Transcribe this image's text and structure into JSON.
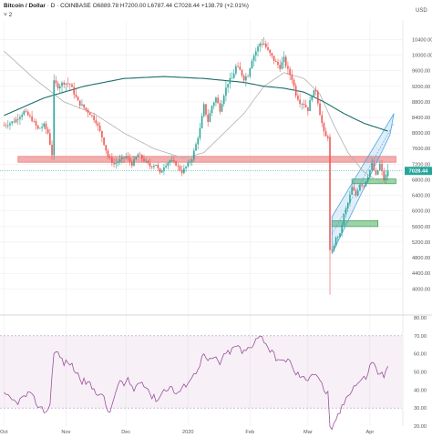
{
  "header": {
    "symbol": "Bitcoin / Dollar",
    "interval": "D",
    "exchange": "COINBASE",
    "ohlc": "O6889.78 H7200.00 L6787.44 C7028.44 +138.79 (+2.01%)",
    "indicator_badge": "˅ 2",
    "currency": "USD"
  },
  "price_label": "7028.44",
  "colors": {
    "up": "#26a69a",
    "down": "#ef5350",
    "ma200": "#1b6e6b",
    "ma50": "#b0b0b0",
    "rsi": "#9b4f9b",
    "channel": "#4da3e0",
    "resistance": "#e57373",
    "support": "#66bb6a"
  },
  "chart_data": [
    {
      "type": "candlestick",
      "title": "Bitcoin / Dollar",
      "x_ticks": [
        {
          "label": "Oct",
          "day": 0
        },
        {
          "label": "Nov",
          "day": 31
        },
        {
          "label": "Dec",
          "day": 61
        },
        {
          "label": "2020",
          "day": 92
        },
        {
          "label": "Feb",
          "day": 123
        },
        {
          "label": "Mar",
          "day": 152
        },
        {
          "label": "Apr",
          "day": 183
        }
      ],
      "ylim": [
        3400,
        10900
      ],
      "y_ticks": [
        4000,
        4400,
        4800,
        5200,
        5600,
        6000,
        6400,
        6800,
        7200,
        7600,
        8000,
        8400,
        8800,
        9200,
        9600,
        10000,
        10400
      ],
      "x_day_range": [
        -2,
        199
      ],
      "anchors": [
        [
          0,
          8200
        ],
        [
          5,
          8300
        ],
        [
          10,
          8550
        ],
        [
          14,
          8350
        ],
        [
          17,
          8100
        ],
        [
          20,
          8200
        ],
        [
          22,
          8000
        ],
        [
          24,
          7450
        ],
        [
          25,
          9300
        ],
        [
          27,
          9200
        ],
        [
          30,
          9300
        ],
        [
          33,
          9250
        ],
        [
          37,
          8800
        ],
        [
          40,
          8650
        ],
        [
          43,
          8500
        ],
        [
          46,
          8300
        ],
        [
          49,
          7900
        ],
        [
          52,
          7400
        ],
        [
          55,
          7200
        ],
        [
          58,
          7300
        ],
        [
          61,
          7400
        ],
        [
          64,
          7200
        ],
        [
          67,
          7450
        ],
        [
          70,
          7300
        ],
        [
          73,
          7150
        ],
        [
          76,
          7200
        ],
        [
          78,
          6950
        ],
        [
          80,
          7150
        ],
        [
          83,
          7300
        ],
        [
          86,
          7200
        ],
        [
          89,
          7000
        ],
        [
          92,
          7200
        ],
        [
          94,
          7350
        ],
        [
          96,
          7700
        ],
        [
          98,
          8100
        ],
        [
          100,
          8700
        ],
        [
          102,
          8300
        ],
        [
          104,
          8700
        ],
        [
          106,
          8900
        ],
        [
          108,
          8600
        ],
        [
          110,
          9000
        ],
        [
          112,
          9300
        ],
        [
          114,
          9400
        ],
        [
          116,
          9700
        ],
        [
          118,
          9600
        ],
        [
          120,
          9400
        ],
        [
          122,
          9500
        ],
        [
          124,
          9900
        ],
        [
          126,
          10100
        ],
        [
          128,
          10300
        ],
        [
          130,
          10300
        ],
        [
          132,
          10100
        ],
        [
          134,
          9950
        ],
        [
          136,
          9800
        ],
        [
          138,
          9700
        ],
        [
          140,
          9900
        ],
        [
          142,
          9600
        ],
        [
          144,
          9400
        ],
        [
          146,
          9000
        ],
        [
          148,
          8800
        ],
        [
          150,
          8750
        ],
        [
          152,
          8600
        ],
        [
          154,
          9000
        ],
        [
          156,
          9100
        ],
        [
          158,
          8500
        ],
        [
          160,
          8000
        ],
        [
          161,
          7900
        ],
        [
          162,
          7900
        ],
        [
          163,
          5000
        ],
        [
          164,
          4950
        ],
        [
          166,
          5300
        ],
        [
          168,
          5400
        ],
        [
          170,
          5900
        ],
        [
          172,
          6200
        ],
        [
          174,
          6600
        ],
        [
          176,
          6400
        ],
        [
          178,
          6700
        ],
        [
          180,
          6650
        ],
        [
          182,
          6900
        ],
        [
          184,
          7200
        ],
        [
          186,
          6900
        ],
        [
          188,
          7200
        ],
        [
          190,
          6800
        ],
        [
          192,
          7028
        ]
      ],
      "ma200_anchors": [
        [
          0,
          8450
        ],
        [
          20,
          8900
        ],
        [
          40,
          9200
        ],
        [
          60,
          9400
        ],
        [
          80,
          9450
        ],
        [
          100,
          9400
        ],
        [
          120,
          9300
        ],
        [
          130,
          9200
        ],
        [
          140,
          9150
        ],
        [
          150,
          9050
        ],
        [
          160,
          8800
        ],
        [
          170,
          8500
        ],
        [
          180,
          8250
        ],
        [
          192,
          8050
        ]
      ],
      "ma50_anchors": [
        [
          0,
          10100
        ],
        [
          15,
          9400
        ],
        [
          30,
          8800
        ],
        [
          45,
          8500
        ],
        [
          60,
          8000
        ],
        [
          75,
          7600
        ],
        [
          90,
          7350
        ],
        [
          100,
          7500
        ],
        [
          110,
          8000
        ],
        [
          120,
          8500
        ],
        [
          130,
          9200
        ],
        [
          140,
          9550
        ],
        [
          150,
          9400
        ],
        [
          158,
          9000
        ],
        [
          165,
          8200
        ],
        [
          172,
          7500
        ],
        [
          180,
          7000
        ],
        [
          186,
          6800
        ],
        [
          190,
          6700
        ]
      ],
      "channel": {
        "base_start": [
          164,
          4900
        ],
        "base_end": [
          193,
          7950
        ],
        "top_start": [
          164,
          5850
        ],
        "top_end": [
          195,
          8500
        ],
        "mid_start": [
          164,
          5400
        ],
        "mid_end": [
          195,
          8250
        ]
      },
      "resistance_zone": {
        "day_from": 7,
        "day_to": 196,
        "price_from": 7250,
        "price_to": 7400
      },
      "support_zones": [
        {
          "day_from": 164,
          "day_to": 187,
          "price_from": 5600,
          "price_to": 5750
        },
        {
          "day_from": 174,
          "day_to": 196,
          "price_from": 6700,
          "price_to": 6820
        }
      ],
      "current_price_line": 7028.44
    },
    {
      "type": "line",
      "title": "",
      "series": [
        {
          "name": "",
          "anchors": [
            [
              0,
              37
            ],
            [
              3,
              35
            ],
            [
              6,
              33
            ],
            [
              9,
              35
            ],
            [
              12,
              38
            ],
            [
              15,
              35
            ],
            [
              18,
              30
            ],
            [
              21,
              28
            ],
            [
              23,
              32
            ],
            [
              25,
              62
            ],
            [
              27,
              60
            ],
            [
              30,
              55
            ],
            [
              33,
              55
            ],
            [
              36,
              50
            ],
            [
              39,
              45
            ],
            [
              42,
              44
            ],
            [
              45,
              40
            ],
            [
              48,
              38
            ],
            [
              50,
              35
            ],
            [
              52,
              28
            ],
            [
              54,
              30
            ],
            [
              56,
              40
            ],
            [
              58,
              45
            ],
            [
              60,
              42
            ],
            [
              62,
              45
            ],
            [
              65,
              40
            ],
            [
              68,
              45
            ],
            [
              71,
              43
            ],
            [
              74,
              36
            ],
            [
              77,
              35
            ],
            [
              80,
              40
            ],
            [
              83,
              42
            ],
            [
              86,
              38
            ],
            [
              89,
              40
            ],
            [
              92,
              45
            ],
            [
              95,
              48
            ],
            [
              98,
              55
            ],
            [
              100,
              60
            ],
            [
              102,
              55
            ],
            [
              105,
              58
            ],
            [
              108,
              55
            ],
            [
              111,
              60
            ],
            [
              114,
              62
            ],
            [
              117,
              65
            ],
            [
              119,
              60
            ],
            [
              121,
              62
            ],
            [
              124,
              65
            ],
            [
              127,
              70
            ],
            [
              130,
              68
            ],
            [
              133,
              62
            ],
            [
              136,
              58
            ],
            [
              139,
              55
            ],
            [
              142,
              58
            ],
            [
              145,
              50
            ],
            [
              148,
              48
            ],
            [
              151,
              45
            ],
            [
              154,
              50
            ],
            [
              157,
              48
            ],
            [
              160,
              40
            ],
            [
              162,
              38
            ],
            [
              163,
              18
            ],
            [
              164,
              17
            ],
            [
              166,
              24
            ],
            [
              169,
              30
            ],
            [
              172,
              38
            ],
            [
              175,
              42
            ],
            [
              178,
              45
            ],
            [
              181,
              47
            ],
            [
              184,
              56
            ],
            [
              187,
              50
            ],
            [
              190,
              48
            ],
            [
              192,
              52
            ]
          ]
        }
      ],
      "ylim": [
        20,
        80
      ],
      "y_ticks": [
        20,
        30,
        40,
        50,
        60,
        70,
        80
      ],
      "bands": [
        30,
        70
      ]
    }
  ]
}
